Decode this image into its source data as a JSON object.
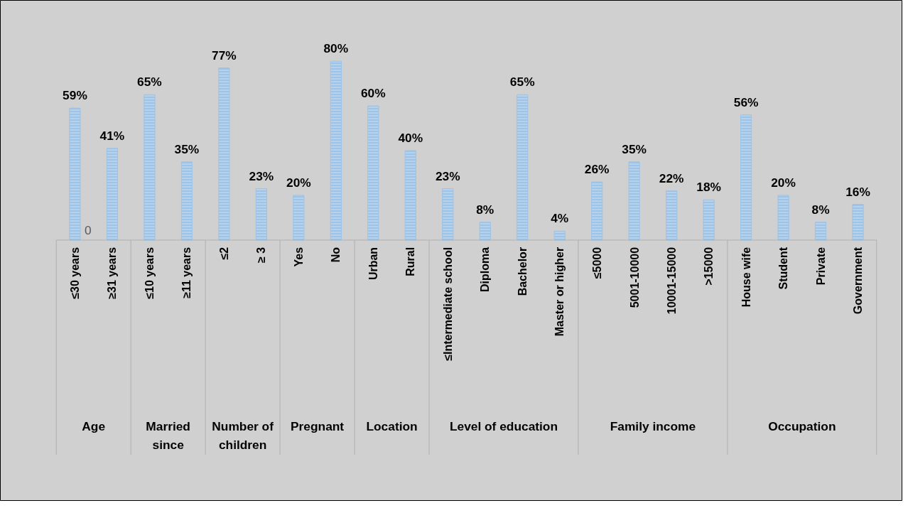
{
  "chart_data": {
    "type": "bar",
    "categories": [
      "≤30 years",
      "≥31 years",
      "≤10 years",
      "≥11 years",
      "≤2",
      "≥ 3",
      "Yes",
      "No",
      "Urban",
      "Rural",
      "≤Intermediate school",
      "Diploma",
      "Bachelor",
      "Master or higher",
      "≤5000",
      "5001-10000",
      "10001-15000",
      ">15000",
      "House wife",
      "Student",
      "Private",
      "Government"
    ],
    "values": [
      59,
      41,
      65,
      35,
      77,
      23,
      20,
      80,
      60,
      40,
      23,
      8,
      65,
      4,
      26,
      35,
      22,
      18,
      56,
      20,
      8,
      16
    ],
    "color": "#9dc3e6",
    "value_labels": [
      "59%",
      "41%",
      "65%",
      "35%",
      "77%",
      "23%",
      "20%",
      "80%",
      "60%",
      "40%",
      "23%",
      "8%",
      "65%",
      "4%",
      "26%",
      "35%",
      "22%",
      "18%",
      "56%",
      "20%",
      "8%",
      "16%"
    ],
    "annotations": [
      "Age",
      "Married since",
      "Number of children",
      "Pregnant",
      "Location",
      "Level of education",
      "Family income",
      "Occupation",
      {
        "text": "0",
        "x": "≤30 years",
        "y": 0
      }
    ]
  }
}
